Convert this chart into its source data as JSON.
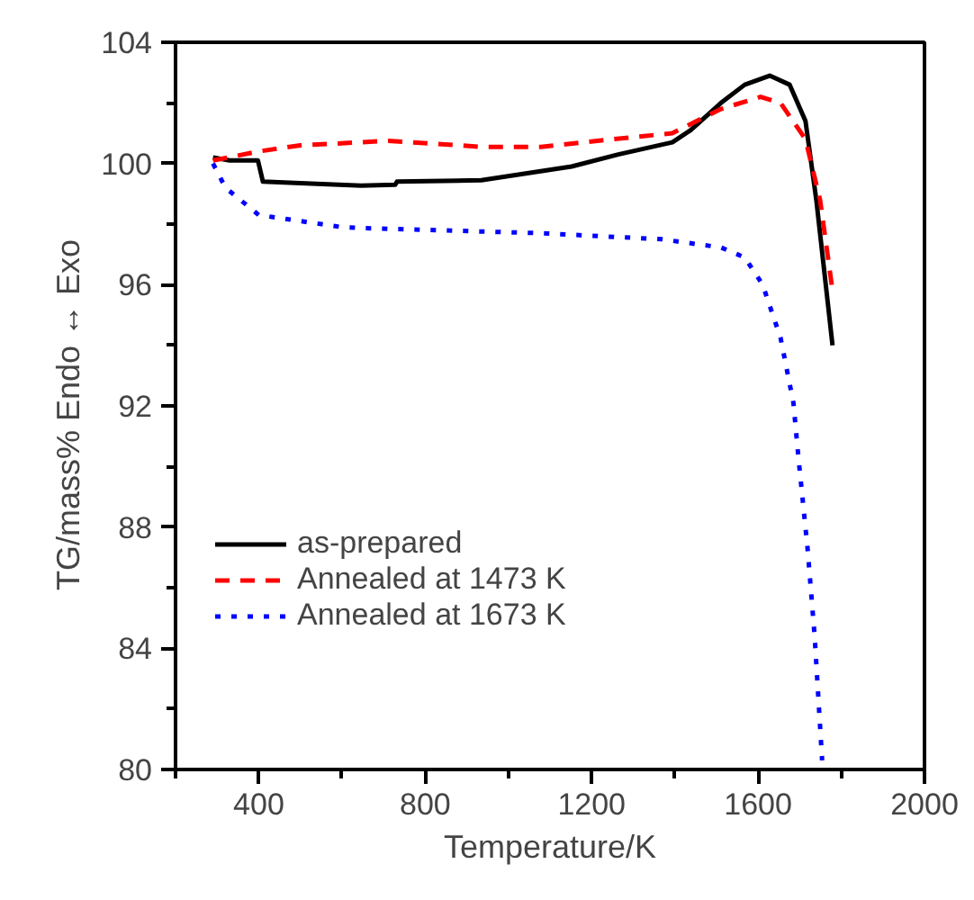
{
  "chart_data": {
    "type": "line",
    "xlabel": "Temperature/K",
    "ylabel": "TG/mass%   Endo ↔ Exo",
    "xlim": [
      200,
      2000
    ],
    "xticks": [
      {
        "value": 200,
        "label": null
      },
      400,
      {
        "value": 600,
        "label": null
      },
      800,
      {
        "value": 1000,
        "label": null
      },
      1200,
      {
        "value": 1400,
        "label": null
      },
      1600,
      {
        "value": 1800,
        "label": null
      },
      2000
    ],
    "ylim": [
      80,
      104
    ],
    "yticks": [
      80,
      {
        "value": 82,
        "label": null
      },
      84,
      {
        "value": 86,
        "label": null
      },
      88,
      {
        "value": 90,
        "label": null
      },
      92,
      {
        "value": 94,
        "label": null
      },
      96,
      {
        "value": 98,
        "label": null
      },
      100,
      {
        "value": 102,
        "label": null
      },
      104
    ],
    "grid": false,
    "legend": "left",
    "marker": "none",
    "series": [
      {
        "name": "as-prepared",
        "color": "#000000",
        "line_style": "solid",
        "x": [
          290,
          330,
          398,
          410,
          500,
          646,
          728,
          732,
          935,
          1152,
          1264,
          1394,
          1438,
          1511,
          1568,
          1628,
          1676,
          1714,
          1740,
          1779
        ],
        "values": [
          100.2,
          100.1,
          100.1,
          99.4,
          99.35,
          99.27,
          99.3,
          99.4,
          99.45,
          99.9,
          100.3,
          100.7,
          101.1,
          102.0,
          102.6,
          102.9,
          102.6,
          101.4,
          98.8,
          94.0
        ]
      },
      {
        "name": "Annealed at 1473 K",
        "color": "#ff0000",
        "line_style": "dashed",
        "x": [
          290,
          400,
          500,
          646,
          711,
          935,
          1078,
          1251,
          1394,
          1511,
          1606,
          1654,
          1714,
          1749,
          1779
        ],
        "values": [
          100.1,
          100.4,
          100.6,
          100.7,
          100.75,
          100.55,
          100.55,
          100.8,
          101.0,
          101.8,
          102.2,
          102.0,
          100.8,
          98.8,
          95.8
        ]
      },
      {
        "name": "Annealed at 1673 K",
        "color": "#0000ff",
        "line_style": "dotted",
        "x": [
          290,
          320,
          400,
          600,
          646,
          1078,
          1368,
          1511,
          1568,
          1611,
          1654,
          1685,
          1697,
          1719,
          1736,
          1754
        ],
        "values": [
          100.0,
          99.2,
          98.3,
          97.9,
          97.87,
          97.7,
          97.5,
          97.23,
          96.9,
          96.0,
          94.25,
          92.1,
          90.3,
          87.3,
          84.4,
          80.3
        ]
      }
    ]
  }
}
